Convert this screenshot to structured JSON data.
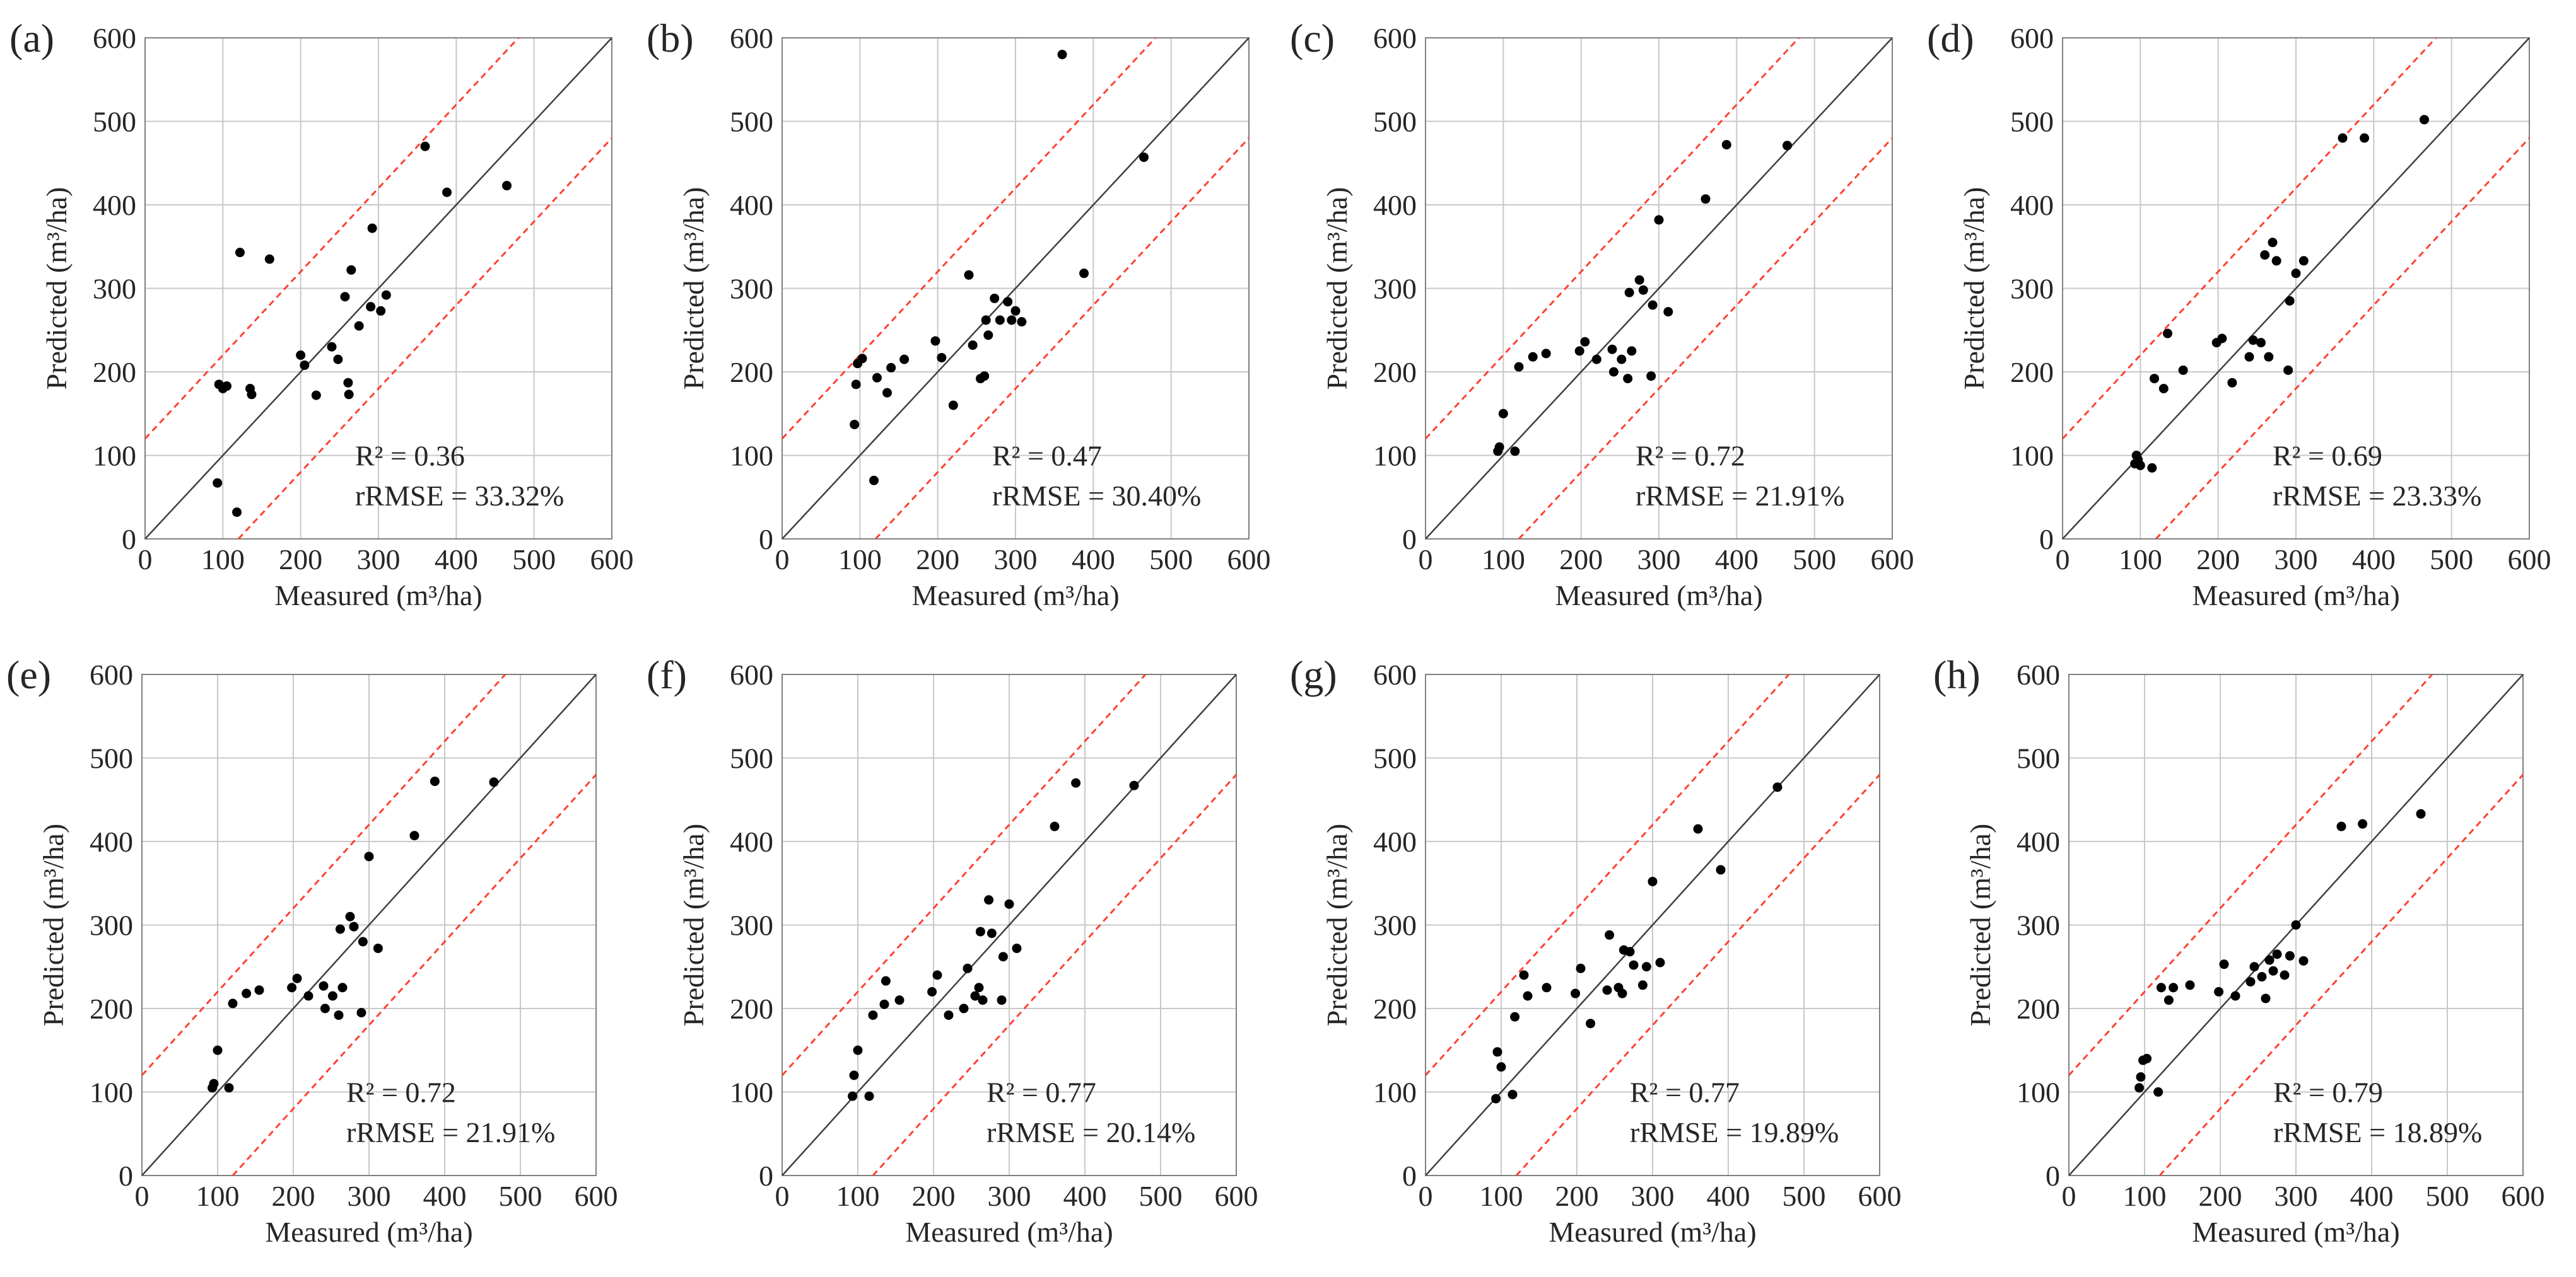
{
  "figure_layout": "2x4 grid of scatter plots",
  "colors": {
    "point": "#000000",
    "identity_line": "#404040",
    "bound_line": "#ff4030",
    "grid": "#c8c8c8",
    "frame": "#808080"
  },
  "chart_data": [
    {
      "type": "scatter",
      "panel": "(a)",
      "xlabel": "Measured (m³/ha)",
      "ylabel": "Predicted (m³/ha)",
      "xlim": [
        0,
        600
      ],
      "ylim": [
        0,
        600
      ],
      "xticks": [
        "0",
        "100",
        "200",
        "300",
        "400",
        "500",
        "600"
      ],
      "yticks": [
        "0",
        "100",
        "200",
        "300",
        "400",
        "500",
        "600"
      ],
      "grid": true,
      "reference_lines": {
        "identity": "y = x",
        "upper_bound": "y = x + 120",
        "lower_bound": "y = x - 120"
      },
      "r2_text": "R² = 0.36",
      "rrmse_text": "rRMSE = 33.32%",
      "points": [
        [
          93,
          67
        ],
        [
          95,
          185
        ],
        [
          100,
          180
        ],
        [
          105,
          183
        ],
        [
          118,
          32
        ],
        [
          122,
          343
        ],
        [
          135,
          180
        ],
        [
          137,
          173
        ],
        [
          160,
          335
        ],
        [
          200,
          220
        ],
        [
          205,
          208
        ],
        [
          220,
          172
        ],
        [
          240,
          230
        ],
        [
          248,
          215
        ],
        [
          257,
          290
        ],
        [
          261,
          187
        ],
        [
          262,
          173
        ],
        [
          265,
          322
        ],
        [
          275,
          255
        ],
        [
          290,
          278
        ],
        [
          292,
          372
        ],
        [
          303,
          273
        ],
        [
          310,
          292
        ],
        [
          360,
          470
        ],
        [
          388,
          415
        ],
        [
          465,
          423
        ]
      ]
    },
    {
      "type": "scatter",
      "panel": "(b)",
      "xlabel": "Measured (m³/ha)",
      "ylabel": "Predicted (m³/ha)",
      "xlim": [
        0,
        600
      ],
      "ylim": [
        0,
        600
      ],
      "xticks": [
        "0",
        "100",
        "200",
        "300",
        "400",
        "500",
        "600"
      ],
      "yticks": [
        "0",
        "100",
        "200",
        "300",
        "400",
        "500",
        "600"
      ],
      "grid": true,
      "reference_lines": {
        "identity": "y = x",
        "upper_bound": "y = x + 120",
        "lower_bound": "y = x - 120"
      },
      "r2_text": "R² = 0.47",
      "rrmse_text": "rRMSE = 30.40%",
      "points": [
        [
          93,
          137
        ],
        [
          95,
          185
        ],
        [
          97,
          210
        ],
        [
          103,
          216
        ],
        [
          118,
          70
        ],
        [
          122,
          193
        ],
        [
          135,
          175
        ],
        [
          140,
          205
        ],
        [
          157,
          215
        ],
        [
          197,
          237
        ],
        [
          205,
          217
        ],
        [
          220,
          160
        ],
        [
          240,
          316
        ],
        [
          245,
          232
        ],
        [
          255,
          192
        ],
        [
          260,
          195
        ],
        [
          262,
          262
        ],
        [
          265,
          244
        ],
        [
          273,
          288
        ],
        [
          280,
          262
        ],
        [
          290,
          284
        ],
        [
          295,
          262
        ],
        [
          300,
          273
        ],
        [
          308,
          260
        ],
        [
          360,
          580
        ],
        [
          388,
          318
        ],
        [
          465,
          457
        ]
      ]
    },
    {
      "type": "scatter",
      "panel": "(c)",
      "xlabel": "Measured (m³/ha)",
      "ylabel": "Predicted (m³/ha)",
      "xlim": [
        0,
        600
      ],
      "ylim": [
        0,
        600
      ],
      "xticks": [
        "0",
        "100",
        "200",
        "300",
        "400",
        "500",
        "600"
      ],
      "yticks": [
        "0",
        "100",
        "200",
        "300",
        "400",
        "500",
        "600"
      ],
      "grid": true,
      "reference_lines": {
        "identity": "y = x",
        "upper_bound": "y = x + 120",
        "lower_bound": "y = x - 120"
      },
      "r2_text": "R² = 0.72",
      "rrmse_text": "rRMSE = 21.91%",
      "points": [
        [
          93,
          105
        ],
        [
          95,
          110
        ],
        [
          100,
          150
        ],
        [
          115,
          105
        ],
        [
          120,
          206
        ],
        [
          138,
          218
        ],
        [
          155,
          222
        ],
        [
          198,
          225
        ],
        [
          205,
          236
        ],
        [
          220,
          215
        ],
        [
          240,
          227
        ],
        [
          242,
          200
        ],
        [
          252,
          215
        ],
        [
          260,
          192
        ],
        [
          262,
          295
        ],
        [
          265,
          225
        ],
        [
          275,
          310
        ],
        [
          280,
          298
        ],
        [
          290,
          195
        ],
        [
          292,
          280
        ],
        [
          300,
          382
        ],
        [
          312,
          272
        ],
        [
          360,
          407
        ],
        [
          387,
          472
        ],
        [
          465,
          471
        ]
      ]
    },
    {
      "type": "scatter",
      "panel": "(d)",
      "xlabel": "Measured (m³/ha)",
      "ylabel": "Predicted (m³/ha)",
      "xlim": [
        0,
        600
      ],
      "ylim": [
        0,
        600
      ],
      "xticks": [
        "0",
        "100",
        "200",
        "300",
        "400",
        "500",
        "600"
      ],
      "yticks": [
        "0",
        "100",
        "200",
        "300",
        "400",
        "500",
        "600"
      ],
      "grid": true,
      "reference_lines": {
        "identity": "y = x",
        "upper_bound": "y = x + 120",
        "lower_bound": "y = x - 120"
      },
      "r2_text": "R² = 0.69",
      "rrmse_text": "rRMSE = 23.33%",
      "points": [
        [
          93,
          90
        ],
        [
          95,
          100
        ],
        [
          97,
          95
        ],
        [
          100,
          88
        ],
        [
          115,
          85
        ],
        [
          118,
          192
        ],
        [
          130,
          180
        ],
        [
          135,
          246
        ],
        [
          155,
          202
        ],
        [
          198,
          235
        ],
        [
          205,
          240
        ],
        [
          218,
          187
        ],
        [
          240,
          218
        ],
        [
          245,
          238
        ],
        [
          255,
          235
        ],
        [
          260,
          340
        ],
        [
          265,
          218
        ],
        [
          270,
          355
        ],
        [
          275,
          333
        ],
        [
          290,
          202
        ],
        [
          292,
          285
        ],
        [
          300,
          318
        ],
        [
          310,
          333
        ],
        [
          360,
          480
        ],
        [
          388,
          480
        ],
        [
          465,
          502
        ]
      ]
    },
    {
      "type": "scatter",
      "panel": "(e)",
      "xlabel": "Measured (m³/ha)",
      "ylabel": "Predicted (m³/ha)",
      "xlim": [
        0,
        600
      ],
      "ylim": [
        0,
        600
      ],
      "xticks": [
        "0",
        "100",
        "200",
        "300",
        "400",
        "500",
        "600"
      ],
      "yticks": [
        "0",
        "100",
        "200",
        "300",
        "400",
        "500",
        "600"
      ],
      "grid": true,
      "reference_lines": {
        "identity": "y = x",
        "upper_bound": "y = x + 120",
        "lower_bound": "y = x - 120"
      },
      "r2_text": "R² = 0.72",
      "rrmse_text": "rRMSE = 21.91%",
      "points": [
        [
          93,
          105
        ],
        [
          95,
          110
        ],
        [
          100,
          150
        ],
        [
          115,
          105
        ],
        [
          120,
          206
        ],
        [
          138,
          218
        ],
        [
          155,
          222
        ],
        [
          198,
          225
        ],
        [
          205,
          236
        ],
        [
          220,
          215
        ],
        [
          240,
          227
        ],
        [
          242,
          200
        ],
        [
          252,
          215
        ],
        [
          260,
          192
        ],
        [
          262,
          295
        ],
        [
          265,
          225
        ],
        [
          275,
          310
        ],
        [
          280,
          298
        ],
        [
          290,
          195
        ],
        [
          292,
          280
        ],
        [
          300,
          382
        ],
        [
          312,
          272
        ],
        [
          360,
          407
        ],
        [
          387,
          472
        ],
        [
          465,
          471
        ]
      ]
    },
    {
      "type": "scatter",
      "panel": "(f)",
      "xlabel": "Measured (m³/ha)",
      "ylabel": "Predicted (m³/ha)",
      "xlim": [
        0,
        600
      ],
      "ylim": [
        0,
        600
      ],
      "xticks": [
        "0",
        "100",
        "200",
        "300",
        "400",
        "500",
        "600"
      ],
      "yticks": [
        "0",
        "100",
        "200",
        "300",
        "400",
        "500",
        "600"
      ],
      "grid": true,
      "reference_lines": {
        "identity": "y = x",
        "upper_bound": "y = x + 120",
        "lower_bound": "y = x - 120"
      },
      "r2_text": "R² = 0.77",
      "rrmse_text": "rRMSE = 20.14%",
      "points": [
        [
          93,
          95
        ],
        [
          95,
          120
        ],
        [
          100,
          150
        ],
        [
          115,
          95
        ],
        [
          120,
          192
        ],
        [
          135,
          205
        ],
        [
          137,
          233
        ],
        [
          155,
          210
        ],
        [
          198,
          220
        ],
        [
          205,
          240
        ],
        [
          220,
          192
        ],
        [
          240,
          200
        ],
        [
          245,
          248
        ],
        [
          255,
          215
        ],
        [
          260,
          225
        ],
        [
          262,
          292
        ],
        [
          265,
          210
        ],
        [
          273,
          330
        ],
        [
          277,
          290
        ],
        [
          290,
          210
        ],
        [
          292,
          262
        ],
        [
          300,
          325
        ],
        [
          310,
          272
        ],
        [
          360,
          418
        ],
        [
          388,
          470
        ],
        [
          465,
          467
        ]
      ]
    },
    {
      "type": "scatter",
      "panel": "(g)",
      "xlabel": "Measured (m³/ha)",
      "ylabel": "Predicted (m³/ha)",
      "xlim": [
        0,
        600
      ],
      "ylim": [
        0,
        600
      ],
      "xticks": [
        "0",
        "100",
        "200",
        "300",
        "400",
        "500",
        "600"
      ],
      "yticks": [
        "0",
        "100",
        "200",
        "300",
        "400",
        "500",
        "600"
      ],
      "grid": true,
      "reference_lines": {
        "identity": "y = x",
        "upper_bound": "y = x + 120",
        "lower_bound": "y = x - 120"
      },
      "r2_text": "R² = 0.77",
      "rrmse_text": "rRMSE = 19.89%",
      "points": [
        [
          93,
          92
        ],
        [
          95,
          148
        ],
        [
          100,
          130
        ],
        [
          115,
          97
        ],
        [
          118,
          190
        ],
        [
          130,
          240
        ],
        [
          135,
          215
        ],
        [
          160,
          225
        ],
        [
          198,
          218
        ],
        [
          205,
          248
        ],
        [
          218,
          182
        ],
        [
          240,
          222
        ],
        [
          243,
          288
        ],
        [
          255,
          225
        ],
        [
          260,
          218
        ],
        [
          262,
          270
        ],
        [
          270,
          268
        ],
        [
          275,
          252
        ],
        [
          287,
          228
        ],
        [
          292,
          250
        ],
        [
          300,
          352
        ],
        [
          310,
          255
        ],
        [
          360,
          415
        ],
        [
          390,
          366
        ],
        [
          465,
          465
        ]
      ]
    },
    {
      "type": "scatter",
      "panel": "(h)",
      "xlabel": "Measured (m³/ha)",
      "ylabel": "Predicted (m³/ha)",
      "xlim": [
        0,
        600
      ],
      "ylim": [
        0,
        600
      ],
      "xticks": [
        "0",
        "100",
        "200",
        "300",
        "400",
        "500",
        "600"
      ],
      "yticks": [
        "0",
        "100",
        "200",
        "300",
        "400",
        "500",
        "600"
      ],
      "grid": true,
      "reference_lines": {
        "identity": "y = x",
        "upper_bound": "y = x + 120",
        "lower_bound": "y = x - 120"
      },
      "r2_text": "R² = 0.79",
      "rrmse_text": "rRMSE = 18.89%",
      "points": [
        [
          93,
          105
        ],
        [
          95,
          118
        ],
        [
          98,
          138
        ],
        [
          103,
          140
        ],
        [
          118,
          100
        ],
        [
          122,
          225
        ],
        [
          132,
          210
        ],
        [
          138,
          225
        ],
        [
          160,
          228
        ],
        [
          198,
          220
        ],
        [
          205,
          253
        ],
        [
          220,
          215
        ],
        [
          240,
          232
        ],
        [
          245,
          250
        ],
        [
          255,
          238
        ],
        [
          260,
          212
        ],
        [
          265,
          258
        ],
        [
          270,
          245
        ],
        [
          275,
          265
        ],
        [
          285,
          240
        ],
        [
          292,
          263
        ],
        [
          300,
          300
        ],
        [
          310,
          257
        ],
        [
          360,
          418
        ],
        [
          388,
          421
        ],
        [
          465,
          433
        ]
      ]
    }
  ]
}
